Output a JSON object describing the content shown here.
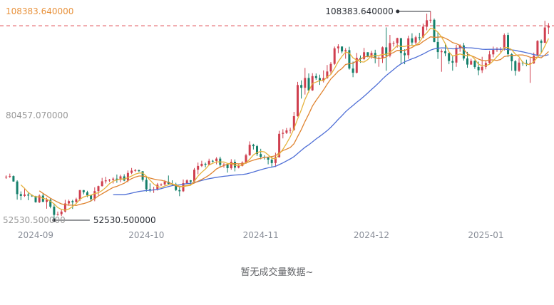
{
  "chart": {
    "y_axis_labels": [
      {
        "text": "108383.640000",
        "color": "#e8923c"
      },
      {
        "text": "80457.070000",
        "color": "#999999"
      },
      {
        "text": "52530.500000",
        "color": "#999999"
      }
    ],
    "no_volume_text": "暂无成交量数据~"
  },
  "chart_data": {
    "type": "candlestick",
    "title": "",
    "ylim": [
      52530.5,
      108383.64
    ],
    "x_labels": [
      "2024-09",
      "2024-10",
      "2024-11",
      "2024-12",
      "2025-01"
    ],
    "annotations": {
      "high_label": "108383.640000",
      "low_label": "52530.500000"
    },
    "colors": {
      "up": "#cf3f4f",
      "down": "#15806b",
      "dashed": "#e0484f",
      "axis_text": "#8a8f99",
      "annotation": "#2b2f36"
    },
    "moving_averages": [
      {
        "period": 30,
        "color": "#4f6fd6"
      },
      {
        "period": 10,
        "color": "#e08431"
      },
      {
        "period": 5,
        "color": "#e6b33d"
      }
    ],
    "candles": [
      [
        "2024-08-24",
        64094,
        64178,
        63586,
        64513
      ],
      [
        "2024-08-25",
        64178,
        64333,
        63831,
        65000
      ],
      [
        "2024-08-26",
        64333,
        62880,
        62842,
        64498
      ],
      [
        "2024-08-27",
        62880,
        59504,
        58034,
        63212
      ],
      [
        "2024-08-28",
        59504,
        59027,
        57890,
        60236
      ],
      [
        "2024-08-29",
        59027,
        59388,
        58771,
        61184
      ],
      [
        "2024-08-30",
        59388,
        59119,
        57863,
        59910
      ],
      [
        "2024-08-31",
        59119,
        58969,
        58768,
        59437
      ],
      [
        "2024-09-01",
        58969,
        57325,
        57213,
        59073
      ],
      [
        "2024-09-02",
        57325,
        59112,
        57128,
        59425
      ],
      [
        "2024-09-03",
        59112,
        57431,
        57405,
        59815
      ],
      [
        "2024-09-04",
        57431,
        57971,
        55606,
        58519
      ],
      [
        "2024-09-05",
        57971,
        56160,
        55712,
        58327
      ],
      [
        "2024-09-06",
        56160,
        53948,
        52530.5,
        57008
      ],
      [
        "2024-09-07",
        53948,
        54139,
        53743,
        54838
      ],
      [
        "2024-09-08",
        54139,
        54841,
        53630,
        55302
      ],
      [
        "2024-09-09",
        54841,
        57019,
        54591,
        57973
      ],
      [
        "2024-09-10",
        57019,
        57648,
        56401,
        58041
      ],
      [
        "2024-09-11",
        57648,
        57343,
        55545,
        57982
      ],
      [
        "2024-09-12",
        57343,
        58127,
        57324,
        58534
      ],
      [
        "2024-09-13",
        58127,
        60571,
        57632,
        60625
      ],
      [
        "2024-09-14",
        60571,
        60005,
        59437,
        60610
      ],
      [
        "2024-09-15",
        60005,
        59182,
        58691,
        60381
      ],
      [
        "2024-09-16",
        59182,
        58192,
        57493,
        59210
      ],
      [
        "2024-09-17",
        58192,
        60308,
        57610,
        61316
      ],
      [
        "2024-09-18",
        60308,
        61649,
        59174,
        61767
      ],
      [
        "2024-09-19",
        61649,
        62940,
        61555,
        63850
      ],
      [
        "2024-09-20",
        62940,
        63193,
        62350,
        64133
      ],
      [
        "2024-09-21",
        63193,
        63348,
        62758,
        63559
      ],
      [
        "2024-09-22",
        63348,
        63648,
        62357,
        64000
      ],
      [
        "2024-09-23",
        63648,
        63339,
        62538,
        64745
      ],
      [
        "2024-09-24",
        63339,
        64262,
        62700,
        64688
      ],
      [
        "2024-09-25",
        64262,
        63143,
        62953,
        64822
      ],
      [
        "2024-09-26",
        63143,
        65173,
        62670,
        65838
      ],
      [
        "2024-09-27",
        65173,
        65790,
        64851,
        66498
      ],
      [
        "2024-09-28",
        65790,
        65887,
        65439,
        66263
      ],
      [
        "2024-09-29",
        65887,
        65635,
        65421,
        66076
      ],
      [
        "2024-09-30",
        65635,
        63329,
        62856,
        65635
      ],
      [
        "2024-10-01",
        63329,
        60837,
        60170,
        64130
      ],
      [
        "2024-10-02",
        60837,
        60632,
        60000,
        62380
      ],
      [
        "2024-10-03",
        60632,
        60759,
        59828,
        61472
      ],
      [
        "2024-10-04",
        60759,
        62067,
        60459,
        62485
      ],
      [
        "2024-10-05",
        62067,
        62089,
        61690,
        62370
      ],
      [
        "2024-10-06",
        62089,
        62818,
        61842,
        63261
      ],
      [
        "2024-10-07",
        62818,
        62236,
        62100,
        64478
      ],
      [
        "2024-10-08",
        62236,
        62131,
        61860,
        63200
      ],
      [
        "2024-10-09",
        62131,
        60582,
        60324,
        62539
      ],
      [
        "2024-10-10",
        60582,
        60274,
        58946,
        61325
      ],
      [
        "2024-10-11",
        60274,
        62445,
        60087,
        63417
      ],
      [
        "2024-10-12",
        62445,
        63193,
        62247,
        63477
      ],
      [
        "2024-10-13",
        63193,
        62851,
        62050,
        63290
      ],
      [
        "2024-10-14",
        62851,
        66046,
        62450,
        66500
      ],
      [
        "2024-10-15",
        66046,
        67041,
        64800,
        67950
      ],
      [
        "2024-10-16",
        67041,
        67612,
        66750,
        68424
      ],
      [
        "2024-10-17",
        67612,
        67399,
        66666,
        67939
      ],
      [
        "2024-10-18",
        67399,
        68418,
        67193,
        68978
      ],
      [
        "2024-10-19",
        68418,
        68362,
        68010,
        68693
      ],
      [
        "2024-10-20",
        68362,
        69001,
        67478,
        69380
      ],
      [
        "2024-10-21",
        69001,
        67348,
        66824,
        69519
      ],
      [
        "2024-10-22",
        67348,
        67411,
        66567,
        67800
      ],
      [
        "2024-10-23",
        67411,
        66432,
        65260,
        67460
      ],
      [
        "2024-10-24",
        66432,
        68161,
        66050,
        68850
      ],
      [
        "2024-10-25",
        68161,
        66600,
        65596,
        68771
      ],
      [
        "2024-10-26",
        66600,
        67014,
        66395,
        67448
      ],
      [
        "2024-10-27",
        67014,
        67929,
        66907,
        68284
      ],
      [
        "2024-10-28",
        67929,
        69910,
        67585,
        70288
      ],
      [
        "2024-10-29",
        69910,
        72720,
        69743,
        73620
      ],
      [
        "2024-10-30",
        72720,
        72339,
        71436,
        72959
      ],
      [
        "2024-10-31",
        72339,
        70215,
        69685,
        72700
      ],
      [
        "2024-11-01",
        70215,
        69482,
        68820,
        71632
      ],
      [
        "2024-11-02",
        69482,
        69289,
        68771,
        69914
      ],
      [
        "2024-11-03",
        69289,
        68741,
        67478,
        69389
      ],
      [
        "2024-11-04",
        68741,
        67811,
        66835,
        69500
      ],
      [
        "2024-11-05",
        67811,
        69359,
        66775,
        70577
      ],
      [
        "2024-11-06",
        69359,
        75639,
        69288,
        76460
      ],
      [
        "2024-11-07",
        75639,
        75904,
        74416,
        76849
      ],
      [
        "2024-11-08",
        75904,
        76545,
        75587,
        77199
      ],
      [
        "2024-11-09",
        76545,
        76677,
        75714,
        77266
      ],
      [
        "2024-11-10",
        76677,
        80370,
        76492,
        81500
      ],
      [
        "2024-11-11",
        80370,
        88701,
        80216,
        89530
      ],
      [
        "2024-11-12",
        88701,
        87955,
        85072,
        89940
      ],
      [
        "2024-11-13",
        87955,
        90584,
        86141,
        93265
      ],
      [
        "2024-11-14",
        90584,
        87250,
        86668,
        91790
      ],
      [
        "2024-11-15",
        87250,
        91066,
        87119,
        91849
      ],
      [
        "2024-11-16",
        91066,
        90558,
        90063,
        91778
      ],
      [
        "2024-11-17",
        90558,
        89845,
        88722,
        91449
      ],
      [
        "2024-11-18",
        89845,
        90542,
        89376,
        92594
      ],
      [
        "2024-11-19",
        90542,
        92310,
        90371,
        94041
      ],
      [
        "2024-11-20",
        92310,
        94339,
        91500,
        94831
      ],
      [
        "2024-11-21",
        94339,
        98504,
        94040,
        98988
      ],
      [
        "2024-11-22",
        98504,
        98997,
        97222,
        99588
      ],
      [
        "2024-11-23",
        98997,
        97672,
        97180,
        98871
      ],
      [
        "2024-11-24",
        97672,
        98013,
        95734,
        98564
      ],
      [
        "2024-11-25",
        98013,
        93102,
        92801,
        98935
      ],
      [
        "2024-11-26",
        93102,
        91985,
        90791,
        94973
      ],
      [
        "2024-11-27",
        91985,
        95962,
        91772,
        97270
      ],
      [
        "2024-11-28",
        95962,
        95652,
        94648,
        96587
      ],
      [
        "2024-11-29",
        95652,
        97461,
        95364,
        98620
      ],
      [
        "2024-11-30",
        97461,
        96449,
        96110,
        97463
      ],
      [
        "2024-12-01",
        96449,
        97279,
        95712,
        97836
      ],
      [
        "2024-12-02",
        97279,
        95865,
        94510,
        98130
      ],
      [
        "2024-12-03",
        95865,
        96002,
        93578,
        96305
      ],
      [
        "2024-12-04",
        96002,
        98768,
        94587,
        99000
      ],
      [
        "2024-12-05",
        98768,
        96593,
        92510,
        104088
      ],
      [
        "2024-12-06",
        96593,
        99920,
        96100,
        102084
      ],
      [
        "2024-12-07",
        99920,
        99923,
        98969,
        100439
      ],
      [
        "2024-12-08",
        99923,
        101236,
        98700,
        101351
      ],
      [
        "2024-12-09",
        101236,
        97277,
        94395,
        101236
      ],
      [
        "2024-12-10",
        97277,
        96675,
        94256,
        98263
      ],
      [
        "2024-12-11",
        96675,
        101173,
        95689,
        101888
      ],
      [
        "2024-12-12",
        101173,
        100043,
        99333,
        102540
      ],
      [
        "2024-12-13",
        100043,
        101459,
        99230,
        101895
      ],
      [
        "2024-12-14",
        101459,
        101372,
        100626,
        102650
      ],
      [
        "2024-12-15",
        101372,
        104298,
        101235,
        105120
      ],
      [
        "2024-12-16",
        104298,
        106029,
        103339,
        107780
      ],
      [
        "2024-12-17",
        106029,
        106140,
        105321,
        108383.64
      ],
      [
        "2024-12-18",
        106140,
        100204,
        100110,
        106477
      ],
      [
        "2024-12-19",
        100204,
        97490,
        95672,
        102800
      ],
      [
        "2024-12-20",
        97490,
        97756,
        92232,
        98233
      ],
      [
        "2024-12-21",
        97756,
        97224,
        96400,
        99540
      ],
      [
        "2024-12-22",
        97224,
        95104,
        94250,
        97322
      ],
      [
        "2024-12-23",
        95104,
        94686,
        92520,
        96446
      ],
      [
        "2024-12-24",
        94686,
        98676,
        93569,
        99444
      ],
      [
        "2024-12-25",
        98676,
        99299,
        97601,
        99567
      ],
      [
        "2024-12-26",
        99299,
        95795,
        95237,
        99963
      ],
      [
        "2024-12-27",
        95795,
        94164,
        93310,
        97544
      ],
      [
        "2024-12-28",
        94164,
        95163,
        94117,
        95733
      ],
      [
        "2024-12-29",
        95163,
        93530,
        93019,
        95303
      ],
      [
        "2024-12-30",
        93530,
        92643,
        91317,
        94944
      ],
      [
        "2024-12-31",
        92643,
        93557,
        91914,
        96250
      ],
      [
        "2025-01-01",
        93557,
        94591,
        92888,
        95151
      ],
      [
        "2025-01-02",
        94591,
        96886,
        94392,
        97839
      ],
      [
        "2025-01-03",
        96886,
        98107,
        96100,
        98973
      ],
      [
        "2025-01-04",
        98107,
        98236,
        97538,
        98778
      ],
      [
        "2025-01-05",
        98236,
        98314,
        97276,
        98836
      ],
      [
        "2025-01-06",
        98314,
        102078,
        97921,
        102480
      ],
      [
        "2025-01-07",
        102078,
        96922,
        96156,
        102724
      ],
      [
        "2025-01-08",
        96922,
        95043,
        92500,
        97259
      ],
      [
        "2025-01-09",
        95043,
        92484,
        91203,
        95382
      ],
      [
        "2025-01-10",
        92484,
        94701,
        92206,
        95836
      ],
      [
        "2025-01-11",
        94701,
        94566,
        93831,
        95057
      ],
      [
        "2025-01-12",
        94566,
        94488,
        93711,
        95475
      ],
      [
        "2025-01-13",
        94488,
        94516,
        89256,
        95940
      ],
      [
        "2025-01-14",
        94516,
        96534,
        94336,
        97371
      ],
      [
        "2025-01-15",
        96534,
        100497,
        96500,
        100681
      ],
      [
        "2025-01-16",
        100497,
        99987,
        97335,
        100866
      ],
      [
        "2025-01-17",
        99987,
        104077,
        99950,
        105865
      ],
      [
        "2025-01-18",
        104077,
        104556,
        102276,
        105250
      ]
    ]
  }
}
